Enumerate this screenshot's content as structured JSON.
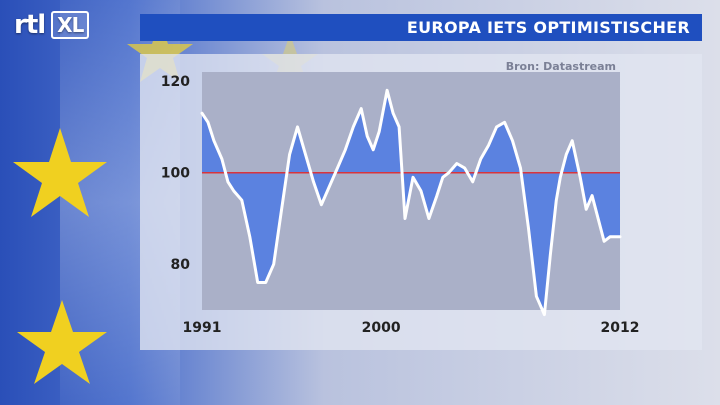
{
  "header": {
    "logo_text": "rtl",
    "logo_badge": "XL",
    "title": "EUROPA IETS OPTIMISTISCHER"
  },
  "colors": {
    "title_bar": "#1f4fbf",
    "fill_blue": "#5b82e0",
    "reference_line": "#d8343c",
    "series_line": "#ffffff",
    "plot_bg": "#aab0c8"
  },
  "icons": [
    "eu-star-icon"
  ],
  "chart_data": {
    "type": "line",
    "source": "Bron: Datastream",
    "title": "",
    "xlabel": "",
    "ylabel": "",
    "xlim": [
      1991,
      2012
    ],
    "ylim": [
      70,
      122
    ],
    "y_ticks": [
      80,
      100,
      120
    ],
    "x_tick_labels": [
      "1991",
      "2000",
      "2012"
    ],
    "x_ticks": [
      1991,
      2000,
      2012
    ],
    "reference_value": 100,
    "grid": false,
    "legend": "none",
    "series": [
      {
        "name": "",
        "x": [
          1991.0,
          1991.3,
          1991.6,
          1992.0,
          1992.3,
          1992.6,
          1993.0,
          1993.4,
          1993.8,
          1994.2,
          1994.6,
          1995.0,
          1995.4,
          1995.8,
          1996.2,
          1996.6,
          1997.0,
          1997.4,
          1997.8,
          1998.2,
          1998.6,
          1999.0,
          1999.3,
          1999.6,
          1999.9,
          2000.3,
          2000.6,
          2000.9,
          2001.2,
          2001.6,
          2002.0,
          2002.4,
          2002.8,
          2003.1,
          2003.4,
          2003.8,
          2004.2,
          2004.6,
          2005.0,
          2005.4,
          2005.8,
          2006.2,
          2006.6,
          2007.0,
          2007.4,
          2007.8,
          2008.2,
          2008.5,
          2008.8,
          2009.0,
          2009.3,
          2009.6,
          2010.0,
          2010.3,
          2010.6,
          2010.9,
          2011.2,
          2011.5,
          2011.8,
          2012.0
        ],
        "y": [
          113,
          111,
          107,
          103,
          98,
          96,
          94,
          86,
          76,
          76,
          80,
          92,
          104,
          110,
          104,
          98,
          93,
          97,
          101,
          105,
          110,
          114,
          108,
          105,
          109,
          118,
          113,
          110,
          90,
          99,
          96,
          90,
          95,
          99,
          100,
          102,
          101,
          98,
          103,
          106,
          110,
          111,
          107,
          101,
          88,
          73,
          69,
          82,
          94,
          99,
          104,
          107,
          99,
          92,
          95,
          90,
          85,
          86,
          86,
          86
        ]
      }
    ]
  }
}
